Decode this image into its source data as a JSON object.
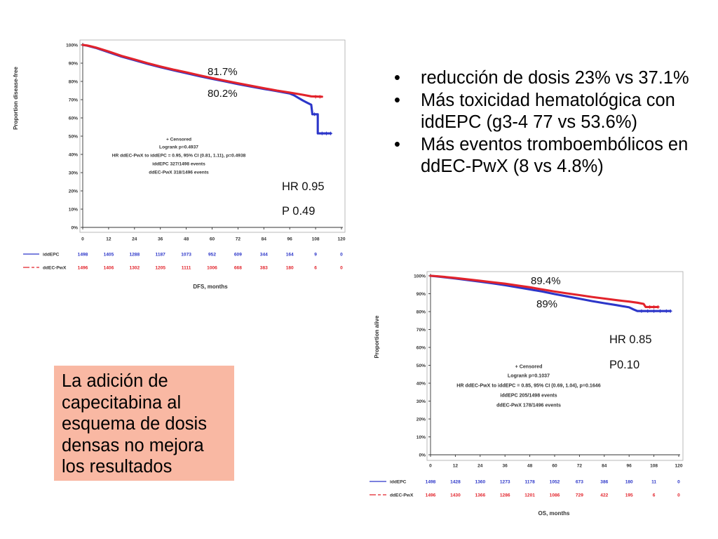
{
  "bullets": [
    {
      "lines": [
        "reducción de dosis 23% vs 37.1%"
      ]
    },
    {
      "lines": [
        "Más toxicidad hematológica con",
        "iddEPC (g3-4 77 vs 53.6%)"
      ]
    },
    {
      "lines": [
        "Más eventos tromboembólicos en",
        "ddEC-PwX (8 vs 4.8%)"
      ]
    }
  ],
  "conclusion_box": {
    "lines": [
      "La adición de",
      "capecitabina al",
      "esquema de dosis",
      "densas no mejora",
      "los resultados"
    ],
    "background": "#f9b8a3"
  },
  "chart_data": [
    {
      "type": "line",
      "ylabel": "Proportion disease-free",
      "xlabel": "DFS, months",
      "xlim": [
        0,
        120
      ],
      "ylim": [
        0,
        100
      ],
      "x_ticks": [
        0,
        12,
        24,
        36,
        48,
        60,
        72,
        84,
        96,
        108,
        120
      ],
      "y_ticks": [
        "0%",
        "10%",
        "20%",
        "30%",
        "40%",
        "50%",
        "60%",
        "70%",
        "80%",
        "90%",
        "100%"
      ],
      "grid": false,
      "legend": "bottom-left",
      "annotations": [
        "+ Censored",
        "Logrank p=0.4937",
        "HR ddEC-PwX to iddEPC = 0.95, 95% CI (0.81, 1.11), p=0.4938",
        "iddEPC 327/1498 events",
        "ddEC-PwX 318/1496 events"
      ],
      "rate_labels": [
        "81.7%",
        "80.2%"
      ],
      "hr_label": "HR 0.95",
      "p_label": "P 0.49",
      "series": [
        {
          "name": "iddEPC",
          "color": "#2c36c9",
          "dashed": false,
          "points": [
            [
              0,
              100
            ],
            [
              2,
              99.6
            ],
            [
              4,
              99
            ],
            [
              6,
              98.4
            ],
            [
              9,
              97.2
            ],
            [
              12,
              96
            ],
            [
              18,
              93.6
            ],
            [
              24,
              91.6
            ],
            [
              30,
              89.6
            ],
            [
              36,
              87.8
            ],
            [
              42,
              86.1
            ],
            [
              48,
              84.5
            ],
            [
              54,
              82.9
            ],
            [
              60,
              81.4
            ],
            [
              66,
              80
            ],
            [
              72,
              78.5
            ],
            [
              78,
              77.2
            ],
            [
              84,
              75.9
            ],
            [
              90,
              74.7
            ],
            [
              96,
              73.4
            ],
            [
              98,
              72.4
            ],
            [
              100,
              71
            ],
            [
              102,
              69.6
            ],
            [
              104,
              68.4
            ],
            [
              106,
              67.2
            ],
            [
              106.5,
              62
            ],
            [
              109,
              62
            ],
            [
              109,
              51.5
            ],
            [
              115,
              51.5
            ]
          ],
          "censored": [
            [
              107.5,
              62
            ],
            [
              111,
              51.5
            ],
            [
              113,
              51.5
            ],
            [
              115,
              51.5
            ]
          ],
          "at_risk": [
            1498,
            1405,
            1288,
            1187,
            1073,
            952,
            609,
            344,
            164,
            9,
            0
          ]
        },
        {
          "name": "ddEC-PwX",
          "color": "#e2232b",
          "dashed": true,
          "points": [
            [
              0,
              100
            ],
            [
              2,
              99.7
            ],
            [
              4,
              99.2
            ],
            [
              6,
              98.6
            ],
            [
              9,
              97.5
            ],
            [
              12,
              96.4
            ],
            [
              18,
              94
            ],
            [
              24,
              92
            ],
            [
              30,
              90
            ],
            [
              36,
              88.2
            ],
            [
              42,
              86.5
            ],
            [
              48,
              85
            ],
            [
              54,
              83.4
            ],
            [
              60,
              81.8
            ],
            [
              66,
              80.4
            ],
            [
              72,
              79
            ],
            [
              78,
              77.6
            ],
            [
              84,
              76.3
            ],
            [
              90,
              75
            ],
            [
              96,
              73.9
            ],
            [
              102,
              72.7
            ],
            [
              106,
              71.8
            ],
            [
              111,
              71.6
            ]
          ],
          "censored": [
            [
              108,
              71.6
            ],
            [
              110,
              71.6
            ]
          ],
          "at_risk": [
            1496,
            1406,
            1302,
            1205,
            1111,
            1006,
            668,
            383,
            180,
            6,
            0
          ]
        }
      ]
    },
    {
      "type": "line",
      "ylabel": "Proportion alive",
      "xlabel": "OS, months",
      "xlim": [
        0,
        120
      ],
      "ylim": [
        0,
        100
      ],
      "x_ticks": [
        0,
        12,
        24,
        36,
        48,
        60,
        72,
        84,
        96,
        108,
        120
      ],
      "y_ticks": [
        "0%",
        "10%",
        "20%",
        "30%",
        "40%",
        "50%",
        "60%",
        "70%",
        "80%",
        "90%",
        "100%"
      ],
      "grid": false,
      "legend": "bottom-left",
      "annotations": [
        "+ Censored",
        "Logrank p=0.1037",
        "HR ddEC-PwX to iddEPC = 0.85, 95% CI (0.69, 1.04), p=0.1646",
        "iddEPC 205/1498 events",
        "ddEC-PwX 178/1496 events"
      ],
      "rate_labels": [
        "89.4%",
        "89%"
      ],
      "hr_label": "HR 0.85",
      "p_label": "P0.10",
      "series": [
        {
          "name": "iddEPC",
          "color": "#2c36c9",
          "dashed": false,
          "points": [
            [
              0,
              100
            ],
            [
              3,
              99.7
            ],
            [
              6,
              99.3
            ],
            [
              12,
              98.5
            ],
            [
              18,
              97.6
            ],
            [
              24,
              96.7
            ],
            [
              30,
              95.8
            ],
            [
              36,
              94.8
            ],
            [
              42,
              93.6
            ],
            [
              48,
              92.4
            ],
            [
              54,
              91.2
            ],
            [
              60,
              89.8
            ],
            [
              66,
              88.5
            ],
            [
              72,
              87.2
            ],
            [
              78,
              85.9
            ],
            [
              84,
              84.7
            ],
            [
              90,
              83.6
            ],
            [
              96,
              82.4
            ],
            [
              98,
              81.3
            ],
            [
              100,
              80.3
            ],
            [
              116,
              80.3
            ]
          ],
          "censored": [
            [
              102,
              80.3
            ],
            [
              105,
              80.3
            ],
            [
              108,
              80.3
            ],
            [
              111,
              80.3
            ],
            [
              114,
              80.3
            ],
            [
              116,
              80.3
            ]
          ],
          "at_risk": [
            1498,
            1428,
            1360,
            1273,
            1178,
            1052,
            673,
            386,
            180,
            11,
            0
          ]
        },
        {
          "name": "ddEC-PwX",
          "color": "#e2232b",
          "dashed": true,
          "points": [
            [
              0,
              100
            ],
            [
              3,
              99.8
            ],
            [
              6,
              99.5
            ],
            [
              12,
              98.8
            ],
            [
              18,
              98
            ],
            [
              24,
              97.2
            ],
            [
              30,
              96.4
            ],
            [
              36,
              95.6
            ],
            [
              42,
              94.6
            ],
            [
              48,
              93.6
            ],
            [
              54,
              92.4
            ],
            [
              60,
              91.2
            ],
            [
              66,
              90.2
            ],
            [
              72,
              89.2
            ],
            [
              78,
              88.2
            ],
            [
              84,
              87.3
            ],
            [
              90,
              86.4
            ],
            [
              96,
              85.6
            ],
            [
              100,
              85
            ],
            [
              103,
              84.3
            ],
            [
              104,
              82.6
            ],
            [
              110,
              82.6
            ]
          ],
          "censored": [
            [
              106,
              82.6
            ],
            [
              108,
              82.6
            ],
            [
              110,
              82.6
            ]
          ],
          "at_risk": [
            1496,
            1430,
            1366,
            1286,
            1201,
            1086,
            729,
            422,
            195,
            6,
            0
          ]
        }
      ]
    }
  ]
}
